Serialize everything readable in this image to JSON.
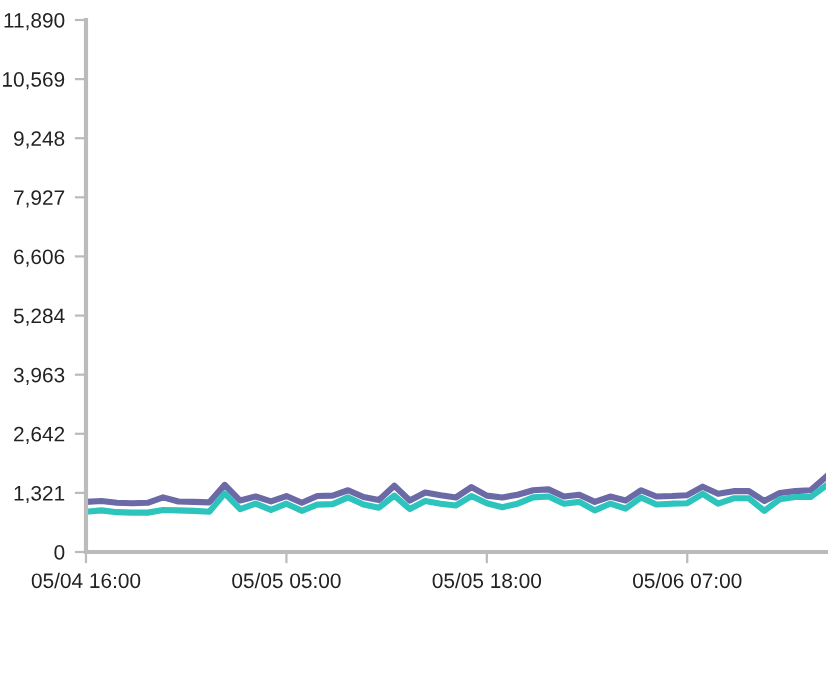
{
  "chart_data": {
    "type": "line",
    "categories": [
      "05/04 16:00",
      null,
      null,
      null,
      null,
      null,
      null,
      null,
      null,
      null,
      null,
      null,
      null,
      "05/05 05:00",
      null,
      null,
      null,
      null,
      null,
      null,
      null,
      null,
      null,
      null,
      null,
      null,
      "05/05 18:00",
      null,
      null,
      null,
      null,
      null,
      null,
      null,
      null,
      null,
      null,
      null,
      null,
      "05/06 07:00",
      null,
      null,
      null,
      null,
      null,
      null,
      null,
      null,
      null
    ],
    "series": [
      {
        "color": "#6b6aa6",
        "values": [
          1120,
          1140,
          1100,
          1090,
          1100,
          1220,
          1130,
          1120,
          1110,
          1500,
          1150,
          1240,
          1130,
          1250,
          1100,
          1250,
          1260,
          1380,
          1230,
          1160,
          1480,
          1150,
          1330,
          1270,
          1220,
          1450,
          1260,
          1220,
          1280,
          1380,
          1400,
          1240,
          1280,
          1120,
          1240,
          1150,
          1380,
          1240,
          1250,
          1270,
          1460,
          1300,
          1360,
          1360,
          1140,
          1320,
          1360,
          1380,
          1680
        ]
      },
      {
        "color": "#2ec4be",
        "values": [
          900,
          930,
          890,
          880,
          880,
          940,
          930,
          920,
          900,
          1310,
          960,
          1080,
          940,
          1080,
          920,
          1060,
          1070,
          1220,
          1060,
          990,
          1260,
          960,
          1140,
          1080,
          1040,
          1250,
          1090,
          1000,
          1080,
          1220,
          1240,
          1080,
          1120,
          930,
          1080,
          970,
          1220,
          1060,
          1080,
          1090,
          1300,
          1080,
          1200,
          1200,
          920,
          1180,
          1230,
          1230,
          1480
        ]
      }
    ],
    "ylim": [
      0,
      11890
    ],
    "yticks": [
      {
        "value": 0,
        "label": "0"
      },
      {
        "value": 1321,
        "label": "1,321"
      },
      {
        "value": 2642,
        "label": "2,642"
      },
      {
        "value": 3963,
        "label": "3,963"
      },
      {
        "value": 5284,
        "label": "5,284"
      },
      {
        "value": 6606,
        "label": "6,606"
      },
      {
        "value": 7927,
        "label": "7,927"
      },
      {
        "value": 9248,
        "label": "9,248"
      },
      {
        "value": 10569,
        "label": "10,569"
      },
      {
        "value": 11890,
        "label": "11,890"
      }
    ],
    "grid": false
  }
}
